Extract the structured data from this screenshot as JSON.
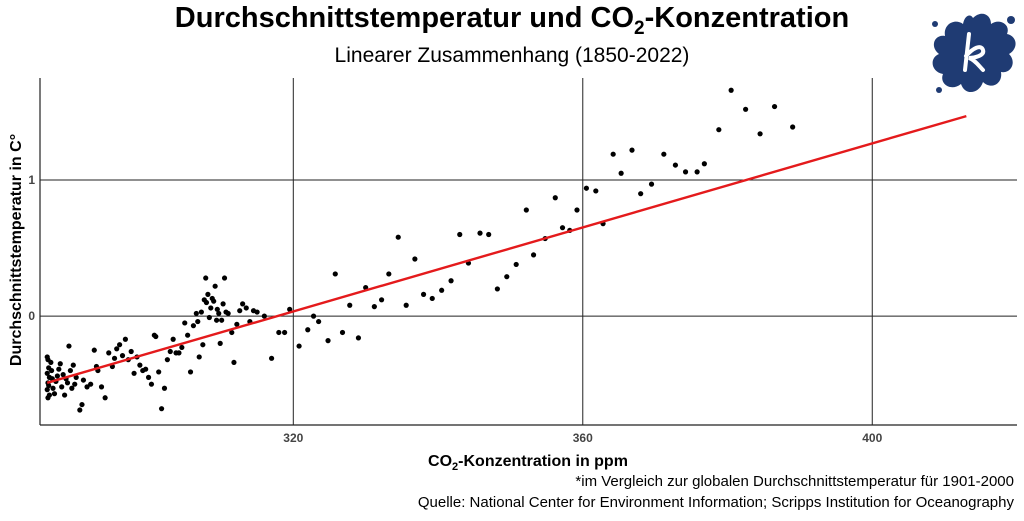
{
  "title_prefix": "Durchschnittstemperatur und CO",
  "title_sub": "2",
  "title_suffix": "-Konzentration",
  "subtitle": "Linearer Zusammenhang (1850-2022)",
  "footnote": "*im Vergleich zur globalen Durchschnittstemperatur für 1901-2000",
  "source": "Quelle: National Center for Environment Information; Scripps Institution for Oceanography",
  "colors": {
    "points": "#000000",
    "trend": "#e41a1c",
    "logo": "#1f3b73",
    "grid": "#222222"
  },
  "logo_icon": "splash-logo-icon",
  "chart_data": {
    "type": "scatter",
    "xlabel_prefix": "CO",
    "xlabel_sub": "2",
    "xlabel_suffix": "-Konzentration in ppm",
    "ylabel": "Durchschnittstemperatur in C°",
    "xlim": [
      285,
      420
    ],
    "ylim": [
      -0.8,
      1.75
    ],
    "xticks": [
      320,
      360,
      400
    ],
    "yticks": [
      0,
      1
    ],
    "grid": true,
    "trend": {
      "x": [
        286,
        413
      ],
      "y": [
        -0.49,
        1.47
      ]
    },
    "points": [
      [
        286.0,
        -0.3
      ],
      [
        286.1,
        -0.32
      ],
      [
        286.2,
        -0.38
      ],
      [
        286.0,
        -0.42
      ],
      [
        286.3,
        -0.45
      ],
      [
        286.1,
        -0.49
      ],
      [
        286.2,
        -0.51
      ],
      [
        286.0,
        -0.54
      ],
      [
        286.3,
        -0.58
      ],
      [
        286.1,
        -0.6
      ],
      [
        286.5,
        -0.34
      ],
      [
        286.6,
        -0.4
      ],
      [
        286.7,
        -0.46
      ],
      [
        286.8,
        -0.53
      ],
      [
        287.0,
        -0.57
      ],
      [
        287.2,
        -0.48
      ],
      [
        287.4,
        -0.44
      ],
      [
        287.6,
        -0.39
      ],
      [
        287.8,
        -0.35
      ],
      [
        288.0,
        -0.52
      ],
      [
        288.2,
        -0.43
      ],
      [
        288.4,
        -0.58
      ],
      [
        288.6,
        -0.46
      ],
      [
        288.8,
        -0.49
      ],
      [
        289.0,
        -0.22
      ],
      [
        289.2,
        -0.4
      ],
      [
        289.4,
        -0.53
      ],
      [
        289.6,
        -0.36
      ],
      [
        289.8,
        -0.5
      ],
      [
        290.0,
        -0.45
      ],
      [
        290.5,
        -0.69
      ],
      [
        290.8,
        -0.65
      ],
      [
        291.0,
        -0.47
      ],
      [
        291.5,
        -0.52
      ],
      [
        292.0,
        -0.5
      ],
      [
        292.5,
        -0.25
      ],
      [
        292.8,
        -0.37
      ],
      [
        293.0,
        -0.4
      ],
      [
        293.5,
        -0.52
      ],
      [
        294.0,
        -0.6
      ],
      [
        294.5,
        -0.27
      ],
      [
        295.0,
        -0.37
      ],
      [
        295.3,
        -0.31
      ],
      [
        295.6,
        -0.24
      ],
      [
        296.0,
        -0.21
      ],
      [
        296.4,
        -0.29
      ],
      [
        296.8,
        -0.17
      ],
      [
        297.2,
        -0.32
      ],
      [
        297.6,
        -0.26
      ],
      [
        298.0,
        -0.42
      ],
      [
        298.4,
        -0.3
      ],
      [
        298.8,
        -0.36
      ],
      [
        299.2,
        -0.4
      ],
      [
        299.6,
        -0.39
      ],
      [
        300.0,
        -0.45
      ],
      [
        300.4,
        -0.5
      ],
      [
        300.8,
        -0.14
      ],
      [
        301.0,
        -0.15
      ],
      [
        301.4,
        -0.41
      ],
      [
        301.8,
        -0.68
      ],
      [
        302.2,
        -0.53
      ],
      [
        302.6,
        -0.32
      ],
      [
        303.0,
        -0.26
      ],
      [
        303.4,
        -0.17
      ],
      [
        303.8,
        -0.27
      ],
      [
        304.2,
        -0.27
      ],
      [
        304.6,
        -0.23
      ],
      [
        305.0,
        -0.05
      ],
      [
        305.4,
        -0.14
      ],
      [
        305.8,
        -0.41
      ],
      [
        306.2,
        -0.07
      ],
      [
        306.6,
        0.02
      ],
      [
        306.8,
        -0.04
      ],
      [
        307.0,
        -0.3
      ],
      [
        307.3,
        0.03
      ],
      [
        307.5,
        -0.21
      ],
      [
        307.7,
        0.12
      ],
      [
        307.9,
        0.28
      ],
      [
        308.0,
        0.1
      ],
      [
        308.2,
        0.16
      ],
      [
        308.4,
        -0.01
      ],
      [
        308.6,
        0.06
      ],
      [
        308.8,
        0.13
      ],
      [
        309.0,
        0.11
      ],
      [
        309.2,
        0.22
      ],
      [
        309.4,
        -0.03
      ],
      [
        309.5,
        0.05
      ],
      [
        309.7,
        0.02
      ],
      [
        309.9,
        -0.2
      ],
      [
        310.1,
        -0.03
      ],
      [
        310.3,
        0.09
      ],
      [
        310.5,
        0.28
      ],
      [
        310.7,
        0.03
      ],
      [
        311.0,
        0.02
      ],
      [
        311.5,
        -0.12
      ],
      [
        311.8,
        -0.34
      ],
      [
        312.2,
        -0.06
      ],
      [
        312.6,
        0.04
      ],
      [
        313.0,
        0.09
      ],
      [
        313.5,
        0.06
      ],
      [
        314.0,
        -0.04
      ],
      [
        314.5,
        0.04
      ],
      [
        315.0,
        0.03
      ],
      [
        316.0,
        0.0
      ],
      [
        317.0,
        -0.31
      ],
      [
        318.0,
        -0.12
      ],
      [
        318.8,
        -0.12
      ],
      [
        319.5,
        0.05
      ],
      [
        320.8,
        -0.22
      ],
      [
        322.0,
        -0.1
      ],
      [
        322.8,
        0.0
      ],
      [
        323.5,
        -0.04
      ],
      [
        324.8,
        -0.18
      ],
      [
        325.8,
        0.31
      ],
      [
        326.8,
        -0.12
      ],
      [
        327.8,
        0.08
      ],
      [
        329.0,
        -0.16
      ],
      [
        330.0,
        0.21
      ],
      [
        331.2,
        0.07
      ],
      [
        332.2,
        0.12
      ],
      [
        333.2,
        0.31
      ],
      [
        334.5,
        0.58
      ],
      [
        335.6,
        0.08
      ],
      [
        336.8,
        0.42
      ],
      [
        338.0,
        0.16
      ],
      [
        339.2,
        0.13
      ],
      [
        340.5,
        0.19
      ],
      [
        341.8,
        0.26
      ],
      [
        343.0,
        0.6
      ],
      [
        344.2,
        0.39
      ],
      [
        345.8,
        0.61
      ],
      [
        347.0,
        0.6
      ],
      [
        348.2,
        0.2
      ],
      [
        349.5,
        0.29
      ],
      [
        350.8,
        0.38
      ],
      [
        352.2,
        0.78
      ],
      [
        353.2,
        0.45
      ],
      [
        354.8,
        0.57
      ],
      [
        356.2,
        0.87
      ],
      [
        357.2,
        0.65
      ],
      [
        358.2,
        0.63
      ],
      [
        359.2,
        0.78
      ],
      [
        360.5,
        0.94
      ],
      [
        361.8,
        0.92
      ],
      [
        362.8,
        0.68
      ],
      [
        364.2,
        1.19
      ],
      [
        365.3,
        1.05
      ],
      [
        366.8,
        1.22
      ],
      [
        368.0,
        0.9
      ],
      [
        369.5,
        0.97
      ],
      [
        371.2,
        1.19
      ],
      [
        372.8,
        1.11
      ],
      [
        374.2,
        1.06
      ],
      [
        375.8,
        1.06
      ],
      [
        376.8,
        1.12
      ],
      [
        378.8,
        1.37
      ],
      [
        380.5,
        1.66
      ],
      [
        382.5,
        1.52
      ],
      [
        384.5,
        1.34
      ],
      [
        386.5,
        1.54
      ],
      [
        389.0,
        1.39
      ]
    ]
  }
}
